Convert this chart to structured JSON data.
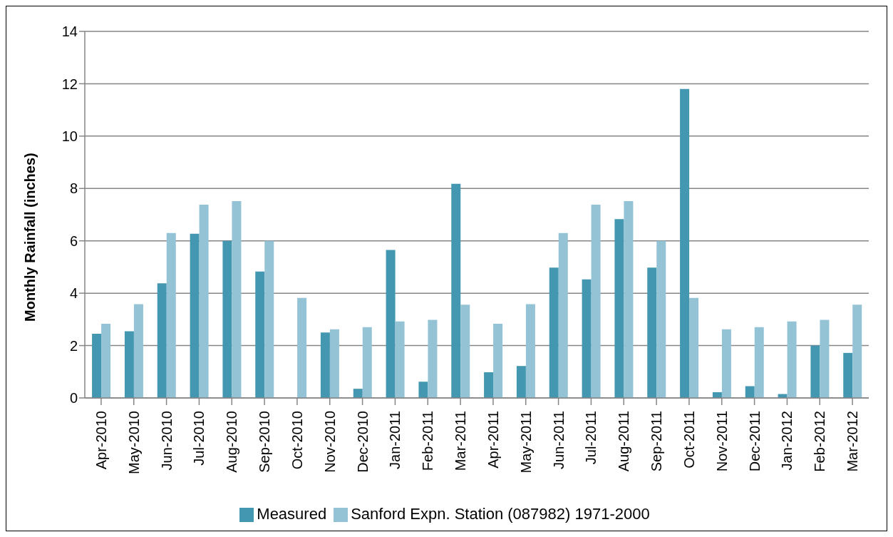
{
  "chart_data": {
    "type": "bar",
    "ylabel": "Monthly Rainfall (inches)",
    "categories": [
      "Apr-2010",
      "May-2010",
      "Jun-2010",
      "Jul-2010",
      "Aug-2010",
      "Sep-2010",
      "Oct-2010",
      "Nov-2010",
      "Dec-2010",
      "Jan-2011",
      "Feb-2011",
      "Mar-2011",
      "Apr-2011",
      "May-2011",
      "Jun-2011",
      "Jul-2011",
      "Aug-2011",
      "Sep-2011",
      "Oct-2011",
      "Nov-2011",
      "Dec-2011",
      "Jan-2012",
      "Feb-2012",
      "Mar-2012"
    ],
    "series": [
      {
        "name": "Measured",
        "color": "#4397b0",
        "values": [
          2.45,
          2.55,
          4.38,
          6.27,
          6.0,
          4.83,
          null,
          2.5,
          0.35,
          5.65,
          0.62,
          8.18,
          0.98,
          1.22,
          4.98,
          4.53,
          6.83,
          4.98,
          11.8,
          0.22,
          0.45,
          0.15,
          2.0,
          1.72
        ]
      },
      {
        "name": "Sanford Expn. Station (087982) 1971-2000",
        "color": "#93c3d5",
        "values": [
          2.83,
          3.58,
          6.3,
          7.38,
          7.52,
          6.0,
          3.82,
          2.62,
          2.7,
          2.92,
          2.98,
          3.56,
          2.83,
          3.58,
          6.3,
          7.38,
          7.52,
          6.0,
          3.82,
          2.62,
          2.7,
          2.92,
          2.98,
          3.56
        ]
      }
    ],
    "ylim": [
      0,
      14
    ],
    "yticks": [
      0,
      2,
      4,
      6,
      8,
      10,
      12,
      14
    ],
    "grid": "y",
    "legend": "bottom"
  }
}
